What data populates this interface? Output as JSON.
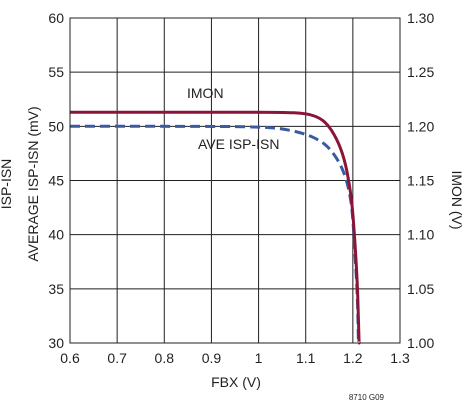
{
  "chart_data": {
    "type": "line",
    "xlabel": "FBX (V)",
    "ylabel_left": "AVERAGE ISP-ISN (mV)",
    "ylabel_right": "IMON (V)",
    "ylabel_left_clipped": "ISP-ISN",
    "xlim": [
      0.6,
      1.3
    ],
    "ylim_left": [
      30,
      60
    ],
    "ylim_right": [
      1.0,
      1.3
    ],
    "x_ticks": [
      "0.6",
      "0.7",
      "0.8",
      "0.9",
      "1",
      "1.1",
      "1.2",
      "1.3"
    ],
    "y_left_ticks": [
      "30",
      "35",
      "40",
      "45",
      "50",
      "55",
      "60"
    ],
    "y_right_ticks": [
      "1.00",
      "1.05",
      "1.10",
      "1.15",
      "1.20",
      "1.25",
      "1.30"
    ],
    "grid": true,
    "figure_id": "8710 G09",
    "series": [
      {
        "name": "IMON",
        "axis": "right",
        "color": "#8b1538",
        "style": "solid",
        "x": [
          0.6,
          0.9,
          1.05,
          1.1,
          1.13,
          1.15,
          1.17,
          1.185,
          1.195,
          1.2,
          1.205,
          1.21,
          1.212,
          1.213
        ],
        "y": [
          1.213,
          1.213,
          1.213,
          1.212,
          1.208,
          1.2,
          1.185,
          1.165,
          1.14,
          1.12,
          1.09,
          1.05,
          1.02,
          1.0
        ]
      },
      {
        "name": "AVE ISP-ISN",
        "axis": "left",
        "color": "#3a5ba0",
        "style": "dashed",
        "x": [
          0.6,
          0.9,
          1.0,
          1.05,
          1.1,
          1.13,
          1.15,
          1.17,
          1.185,
          1.195,
          1.2,
          1.205,
          1.21,
          1.212
        ],
        "y": [
          50.0,
          50.0,
          49.95,
          49.8,
          49.3,
          48.7,
          48.0,
          46.8,
          45.3,
          43.5,
          41.5,
          38.0,
          34.0,
          30.0
        ]
      }
    ],
    "annotations": [
      {
        "text": "IMON"
      },
      {
        "text": "AVE ISP-ISN"
      }
    ]
  }
}
